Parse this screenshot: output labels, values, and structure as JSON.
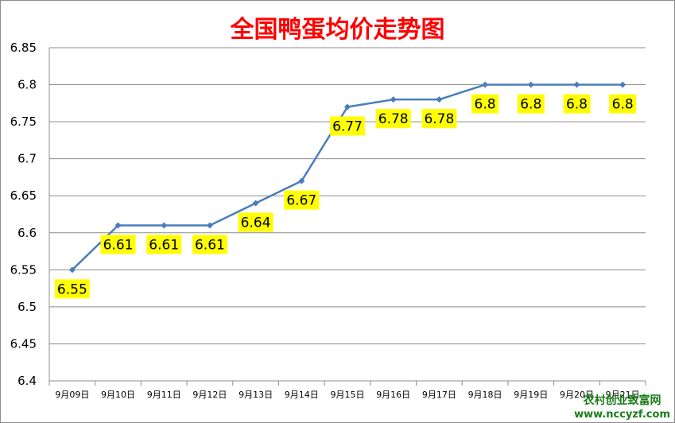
{
  "chart_data": {
    "type": "line",
    "title": "全国鸭蛋均价走势图",
    "xlabel": "",
    "ylabel": "",
    "categories": [
      "9月09日",
      "9月10日",
      "9月11日",
      "9月12日",
      "9月13日",
      "9月14日",
      "9月15日",
      "9月16日",
      "9月17日",
      "9月18日",
      "9月19日",
      "9月20日",
      "9月21日"
    ],
    "series": [
      {
        "values": [
          6.55,
          6.61,
          6.61,
          6.61,
          6.64,
          6.67,
          6.77,
          6.78,
          6.78,
          6.8,
          6.8,
          6.8,
          6.8
        ],
        "labels": [
          "6.55",
          "6.61",
          "6.61",
          "6.61",
          "6.64",
          "6.67",
          "6.77",
          "6.78",
          "6.78",
          "6.8",
          "6.8",
          "6.8",
          "6.8"
        ]
      }
    ],
    "ylim": [
      6.4,
      6.85
    ],
    "yticks": [
      "6.4",
      "6.45",
      "6.5",
      "6.55",
      "6.6",
      "6.65",
      "6.7",
      "6.75",
      "6.8",
      "6.85"
    ],
    "grid": true,
    "legend": "none",
    "colors": {
      "line": "#4a7ebb",
      "label_bg": "#ffff00",
      "title": "#ff0000",
      "grid": "#8c8c8c"
    }
  },
  "watermark": {
    "line1": "农村创业致富网",
    "line2": "www.nccyzf.com"
  }
}
